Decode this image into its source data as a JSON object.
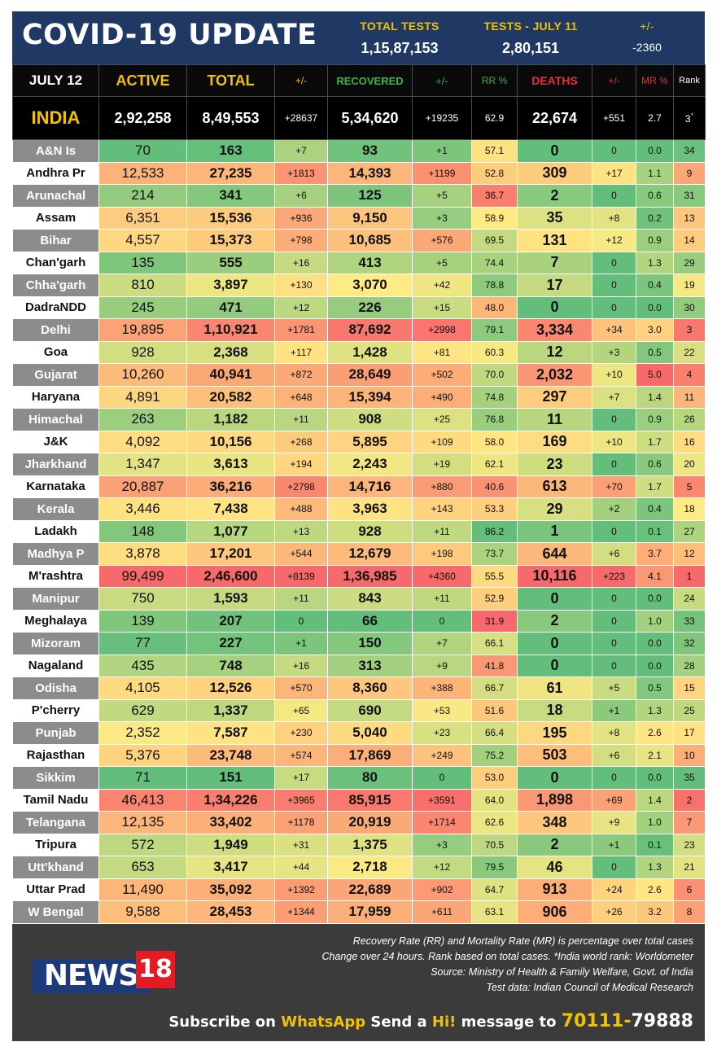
{
  "header": {
    "title": "COVID-19 UPDATE",
    "total_tests_label": "TOTAL TESTS",
    "total_tests_value": "1,15,87,153",
    "tests_day_label": "TESTS - JULY 11",
    "tests_day_value": "2,80,151",
    "change_label": "+/-",
    "change_value": "-2360"
  },
  "columns": {
    "date": "JULY 12",
    "active": "ACTIVE",
    "total": "TOTAL",
    "total_change": "+/-",
    "recovered": "RECOVERED",
    "recovered_change": "+/-",
    "rr": "RR %",
    "deaths": "DEATHS",
    "deaths_change": "+/-",
    "mr": "MR %",
    "rank": "Rank"
  },
  "india": {
    "name": "INDIA",
    "active": "2,92,258",
    "total": "8,49,553",
    "total_change": "+28637",
    "recovered": "5,34,620",
    "recovered_change": "+19235",
    "rr": "62.9",
    "deaths": "22,674",
    "deaths_change": "+551",
    "mr": "2.7",
    "rank": "3",
    "rank_mark": "*"
  },
  "states": [
    [
      "A&N Is",
      "70",
      "163",
      "+7",
      "93",
      "+1",
      "57.1",
      "0",
      "0",
      "0.0",
      "34"
    ],
    [
      "Andhra Pr",
      "12,533",
      "27,235",
      "+1813",
      "14,393",
      "+1199",
      "52.8",
      "309",
      "+17",
      "1.1",
      "9"
    ],
    [
      "Arunachal",
      "214",
      "341",
      "+6",
      "125",
      "+5",
      "36.7",
      "2",
      "0",
      "0.6",
      "31"
    ],
    [
      "Assam",
      "6,351",
      "15,536",
      "+936",
      "9,150",
      "+3",
      "58.9",
      "35",
      "+8",
      "0.2",
      "13"
    ],
    [
      "Bihar",
      "4,557",
      "15,373",
      "+798",
      "10,685",
      "+576",
      "69.5",
      "131",
      "+12",
      "0.9",
      "14"
    ],
    [
      "Chan'garh",
      "135",
      "555",
      "+16",
      "413",
      "+5",
      "74.4",
      "7",
      "0",
      "1.3",
      "29"
    ],
    [
      "Chha'garh",
      "810",
      "3,897",
      "+130",
      "3,070",
      "+42",
      "78.8",
      "17",
      "0",
      "0.4",
      "19"
    ],
    [
      "DadraNDD",
      "245",
      "471",
      "+12",
      "226",
      "+15",
      "48.0",
      "0",
      "0",
      "0.0",
      "30"
    ],
    [
      "Delhi",
      "19,895",
      "1,10,921",
      "+1781",
      "87,692",
      "+2998",
      "79.1",
      "3,334",
      "+34",
      "3.0",
      "3"
    ],
    [
      "Goa",
      "928",
      "2,368",
      "+117",
      "1,428",
      "+81",
      "60.3",
      "12",
      "+3",
      "0.5",
      "22"
    ],
    [
      "Gujarat",
      "10,260",
      "40,941",
      "+872",
      "28,649",
      "+502",
      "70.0",
      "2,032",
      "+10",
      "5.0",
      "4"
    ],
    [
      "Haryana",
      "4,891",
      "20,582",
      "+648",
      "15,394",
      "+490",
      "74.8",
      "297",
      "+7",
      "1.4",
      "11"
    ],
    [
      "Himachal",
      "263",
      "1,182",
      "+11",
      "908",
      "+25",
      "76.8",
      "11",
      "0",
      "0.9",
      "26"
    ],
    [
      "J&K",
      "4,092",
      "10,156",
      "+268",
      "5,895",
      "+109",
      "58.0",
      "169",
      "+10",
      "1.7",
      "16"
    ],
    [
      "Jharkhand",
      "1,347",
      "3,613",
      "+194",
      "2,243",
      "+19",
      "62.1",
      "23",
      "0",
      "0.6",
      "20"
    ],
    [
      "Karnataka",
      "20,887",
      "36,216",
      "+2798",
      "14,716",
      "+880",
      "40.6",
      "613",
      "+70",
      "1.7",
      "5"
    ],
    [
      "Kerala",
      "3,446",
      "7,438",
      "+488",
      "3,963",
      "+143",
      "53.3",
      "29",
      "+2",
      "0.4",
      "18"
    ],
    [
      "Ladakh",
      "148",
      "1,077",
      "+13",
      "928",
      "+11",
      "86.2",
      "1",
      "0",
      "0.1",
      "27"
    ],
    [
      "Madhya P",
      "3,878",
      "17,201",
      "+544",
      "12,679",
      "+198",
      "73.7",
      "644",
      "+6",
      "3.7",
      "12"
    ],
    [
      "M'rashtra",
      "99,499",
      "2,46,600",
      "+8139",
      "1,36,985",
      "+4360",
      "55.5",
      "10,116",
      "+223",
      "4.1",
      "1"
    ],
    [
      "Manipur",
      "750",
      "1,593",
      "+11",
      "843",
      "+11",
      "52.9",
      "0",
      "0",
      "0.0",
      "24"
    ],
    [
      "Meghalaya",
      "139",
      "207",
      "0",
      "66",
      "0",
      "31.9",
      "2",
      "0",
      "1.0",
      "33"
    ],
    [
      "Mizoram",
      "77",
      "227",
      "+1",
      "150",
      "+7",
      "66.1",
      "0",
      "0",
      "0.0",
      "32"
    ],
    [
      "Nagaland",
      "435",
      "748",
      "+16",
      "313",
      "+9",
      "41.8",
      "0",
      "0",
      "0.0",
      "28"
    ],
    [
      "Odisha",
      "4,105",
      "12,526",
      "+570",
      "8,360",
      "+388",
      "66.7",
      "61",
      "+5",
      "0.5",
      "15"
    ],
    [
      "P'cherry",
      "629",
      "1,337",
      "+65",
      "690",
      "+53",
      "51.6",
      "18",
      "+1",
      "1.3",
      "25"
    ],
    [
      "Punjab",
      "2,352",
      "7,587",
      "+230",
      "5,040",
      "+23",
      "66.4",
      "195",
      "+8",
      "2.6",
      "17"
    ],
    [
      "Rajasthan",
      "5,376",
      "23,748",
      "+574",
      "17,869",
      "+249",
      "75.2",
      "503",
      "+6",
      "2.1",
      "10"
    ],
    [
      "Sikkim",
      "71",
      "151",
      "+17",
      "80",
      "0",
      "53.0",
      "0",
      "0",
      "0.0",
      "35"
    ],
    [
      "Tamil Nadu",
      "46,413",
      "1,34,226",
      "+3965",
      "85,915",
      "+3591",
      "64.0",
      "1,898",
      "+69",
      "1.4",
      "2"
    ],
    [
      "Telangana",
      "12,135",
      "33,402",
      "+1178",
      "20,919",
      "+1714",
      "62.6",
      "348",
      "+9",
      "1.0",
      "7"
    ],
    [
      "Tripura",
      "572",
      "1,949",
      "+31",
      "1,375",
      "+3",
      "70.5",
      "2",
      "+1",
      "0.1",
      "23"
    ],
    [
      "Utt'khand",
      "653",
      "3,417",
      "+44",
      "2,718",
      "+12",
      "79.5",
      "46",
      "0",
      "1.3",
      "21"
    ],
    [
      "Uttar Prad",
      "11,490",
      "35,092",
      "+1392",
      "22,689",
      "+902",
      "64.7",
      "913",
      "+24",
      "2.6",
      "6"
    ],
    [
      "W Bengal",
      "9,588",
      "28,453",
      "+1344",
      "17,959",
      "+611",
      "63.1",
      "906",
      "+26",
      "3.2",
      "8"
    ]
  ],
  "footer": {
    "note1": "Recovery Rate (RR) and Mortality Rate (MR) is percentage over total cases",
    "note2": "Change over 24 hours. Rank based on total cases. *India world rank: Worldometer",
    "note3": "Source: Ministry of Health & Family Welfare, Govt. of India",
    "note4": "Test data: Indian Council of Medical Research",
    "logo_text": "NEWS",
    "logo_num": "18",
    "sub_1": "Subscribe on ",
    "sub_whatsapp": "WhatsApp",
    "sub_2": " Send a ",
    "sub_hi": "Hi!",
    "sub_3": " message to ",
    "sub_num_a": "70111-",
    "sub_num_b": "79888"
  },
  "colors": {
    "header_bg": "#203864",
    "accent_yellow": "#f2c200",
    "recovered_green": "#3cb44b",
    "deaths_red": "#e8303a",
    "footer_bg": "#3b3b3b",
    "logo_blue": "#1f3a7a",
    "logo_red": "#e31b23"
  }
}
